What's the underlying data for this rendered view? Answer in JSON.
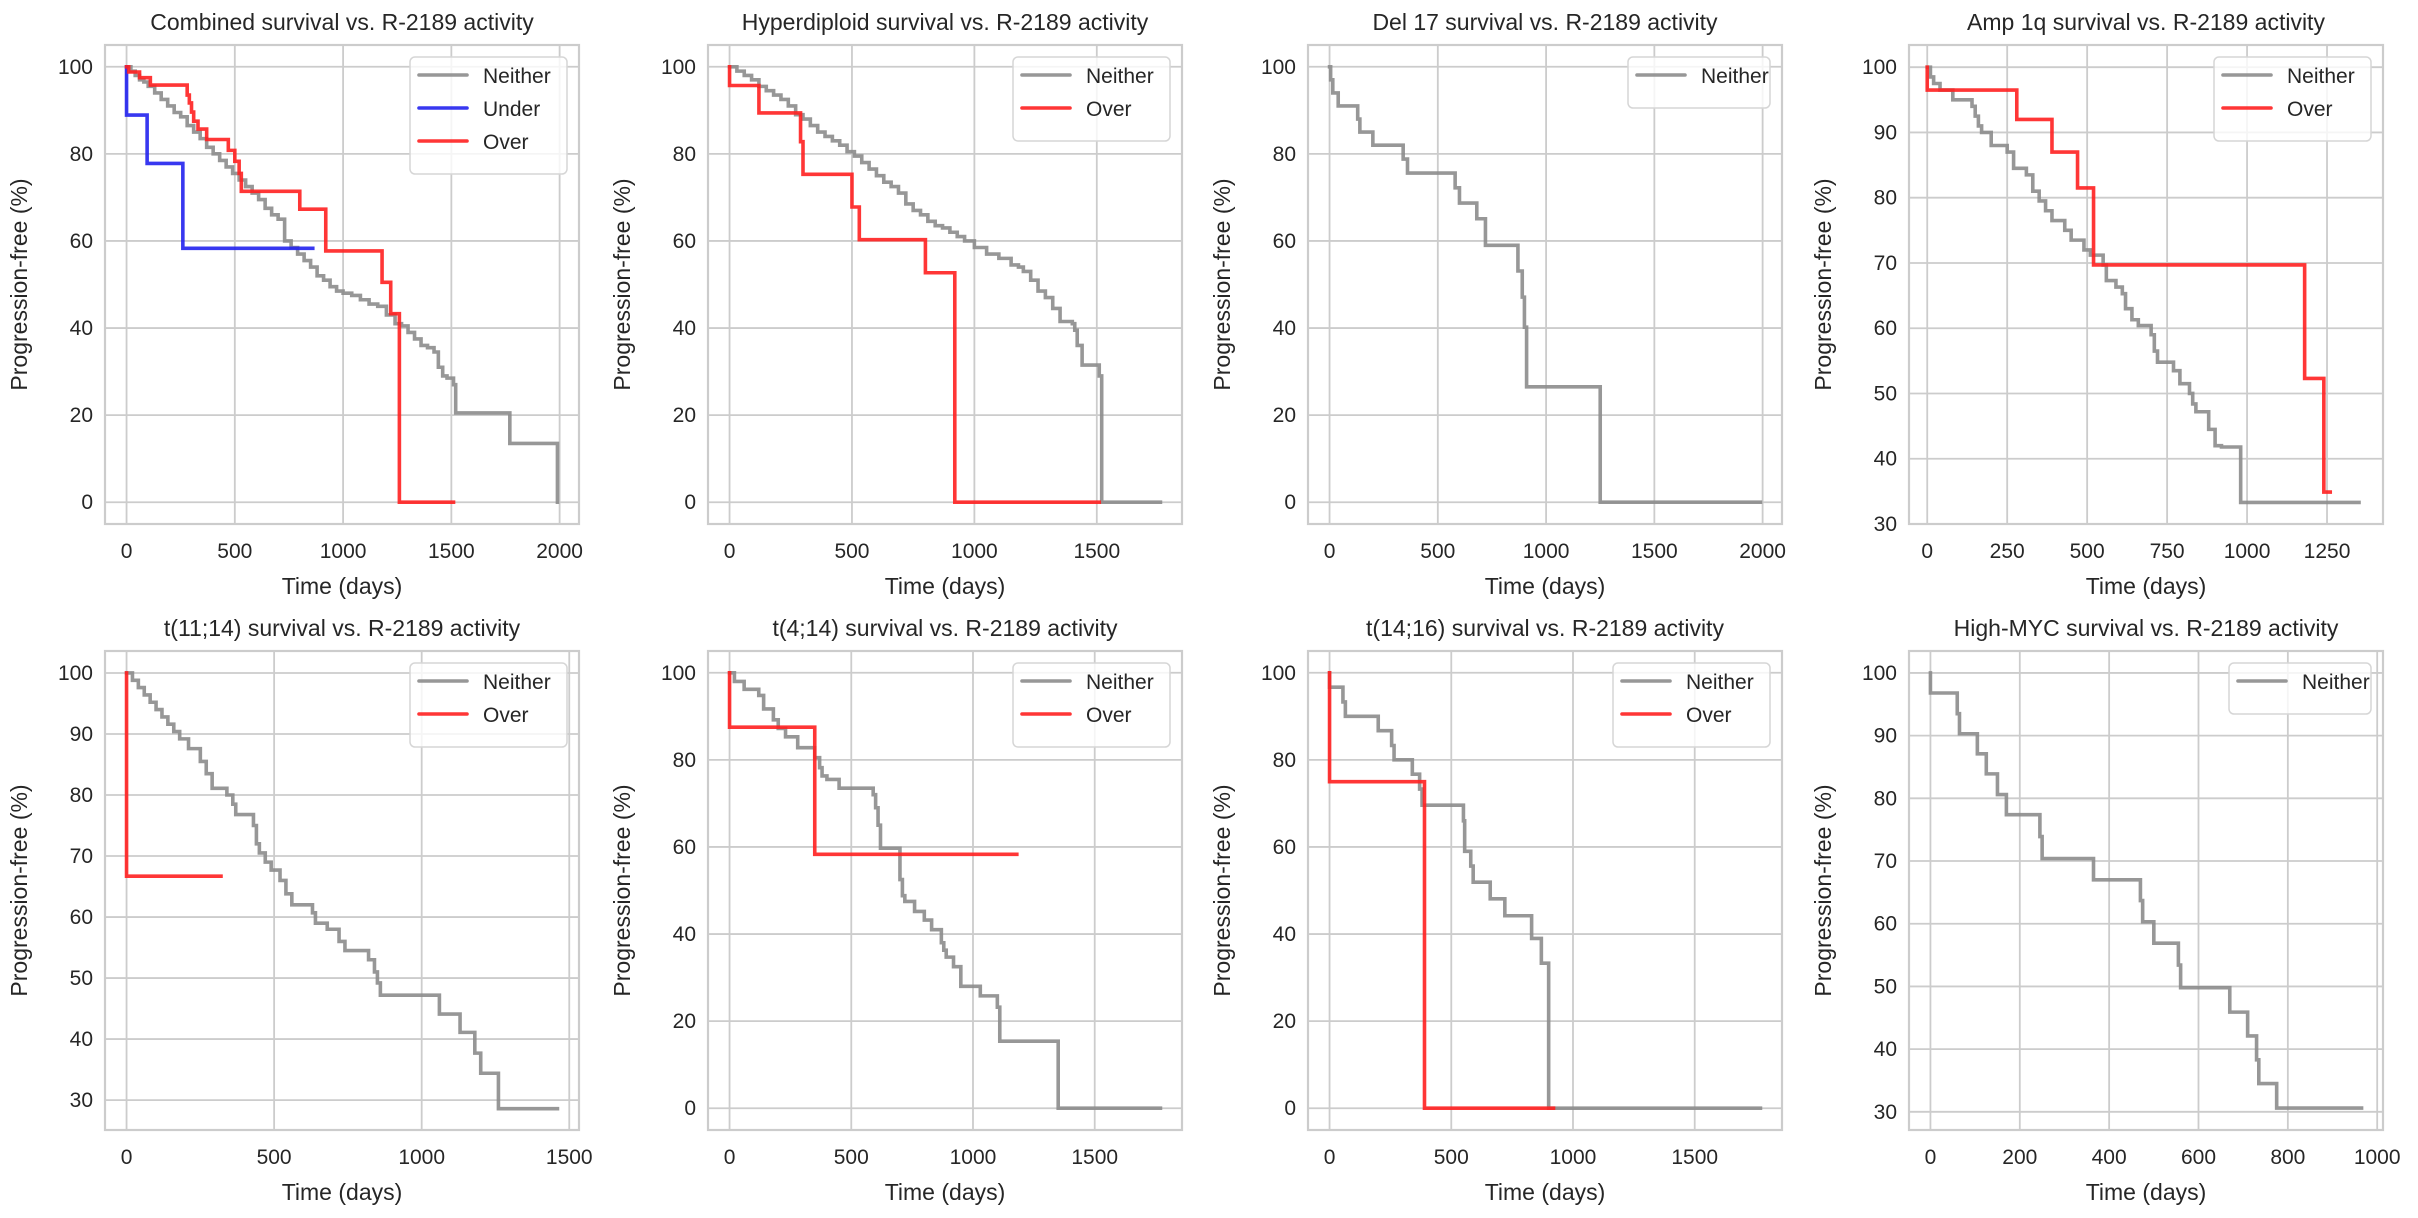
{
  "chart_data": [
    {
      "type": "line",
      "step": true,
      "title": "Combined survival vs. R-2189 activity",
      "xlabel": "Time (days)",
      "ylabel": "Progression-free (%)",
      "xlim": [
        -99.5,
        2089.5
      ],
      "ylim": [
        -5,
        105
      ],
      "xticks": [
        0,
        500,
        1000,
        1500,
        2000
      ],
      "yticks": [
        0,
        20,
        40,
        60,
        80,
        100
      ],
      "grid": true,
      "legend": "top-right",
      "series": [
        {
          "name": "Neither",
          "color": "#8c8c8c",
          "x": [
            0,
            20,
            40,
            60,
            80,
            100,
            130,
            160,
            190,
            220,
            250,
            280,
            310,
            340,
            370,
            400,
            430,
            460,
            490,
            520,
            550,
            580,
            610,
            640,
            670,
            700,
            730,
            760,
            790,
            820,
            850,
            880,
            910,
            940,
            970,
            1000,
            1040,
            1080,
            1120,
            1160,
            1200,
            1240,
            1270,
            1300,
            1330,
            1360,
            1390,
            1420,
            1440,
            1460,
            1480,
            1510,
            1520,
            1760,
            1770,
            1990
          ],
          "y": [
            100,
            99,
            98,
            97,
            96.5,
            95.5,
            94,
            92.5,
            91,
            89.5,
            88.5,
            86.5,
            85,
            83.5,
            81.5,
            80,
            78.5,
            77,
            75.5,
            74,
            72.5,
            71,
            69.5,
            67.5,
            66,
            65,
            60,
            58.5,
            57,
            55.5,
            54,
            52,
            51,
            49.5,
            48.5,
            48,
            47.5,
            46.5,
            45.5,
            45,
            43,
            41,
            40.5,
            39,
            37.5,
            36,
            35.5,
            34.5,
            31,
            29,
            28.5,
            27,
            20.5,
            20.5,
            13.5,
            0
          ]
        },
        {
          "name": "Under",
          "color": "#2222ee",
          "x": [
            0,
            0,
            95,
            260,
            860
          ],
          "y": [
            100,
            88.9,
            77.8,
            58.3,
            58.3
          ]
        },
        {
          "name": "Over",
          "color": "#ff2020",
          "x": [
            0,
            10,
            60,
            110,
            280,
            290,
            300,
            310,
            330,
            370,
            470,
            500,
            520,
            530,
            800,
            920,
            1180,
            1220,
            1260,
            1510
          ],
          "y": [
            100,
            98.8,
            97.5,
            95.8,
            93.5,
            91.7,
            89.6,
            87.5,
            85.7,
            83.3,
            80.8,
            78.3,
            75.5,
            71.4,
            67.3,
            57.7,
            50.5,
            43.3,
            0,
            0
          ]
        }
      ]
    },
    {
      "type": "line",
      "step": true,
      "title": "Hyperdiploid survival vs. R-2189 activity",
      "xlabel": "Time (days)",
      "ylabel": "Progression-free (%)",
      "xlim": [
        -88,
        1848
      ],
      "ylim": [
        -5,
        105
      ],
      "xticks": [
        0,
        500,
        1000,
        1500
      ],
      "yticks": [
        0,
        20,
        40,
        60,
        80,
        100
      ],
      "grid": true,
      "legend": "top-right",
      "series": [
        {
          "name": "Neither",
          "color": "#8c8c8c",
          "x": [
            0,
            30,
            60,
            90,
            120,
            150,
            180,
            210,
            240,
            270,
            300,
            330,
            360,
            390,
            420,
            450,
            480,
            510,
            540,
            570,
            600,
            630,
            660,
            690,
            720,
            750,
            780,
            810,
            840,
            870,
            900,
            930,
            960,
            1000,
            1050,
            1100,
            1150,
            1180,
            1200,
            1230,
            1260,
            1290,
            1320,
            1350,
            1400,
            1410,
            1420,
            1440,
            1510,
            1520,
            1760
          ],
          "y": [
            100,
            99,
            98,
            97,
            95.5,
            94.5,
            93.5,
            92.5,
            91,
            89,
            88,
            86.5,
            85,
            84,
            83,
            82,
            80.5,
            79.5,
            78,
            76.5,
            75,
            73.5,
            72.5,
            71,
            68.5,
            67,
            66,
            64.5,
            63.5,
            63,
            62,
            61,
            60,
            58.5,
            57,
            56,
            54.5,
            54,
            53,
            51,
            48.5,
            47,
            44.5,
            41.5,
            41,
            39.5,
            36,
            31.5,
            29,
            0,
            0
          ]
        },
        {
          "name": "Over",
          "color": "#ff2020",
          "x": [
            0,
            0,
            120,
            290,
            300,
            500,
            530,
            800,
            920,
            1510
          ],
          "y": [
            100,
            95.7,
            89.4,
            82.8,
            75.3,
            67.8,
            60.3,
            52.7,
            0,
            0
          ]
        }
      ]
    },
    {
      "type": "line",
      "step": true,
      "title": "Del 17 survival vs. R-2189 activity",
      "xlabel": "Time (days)",
      "ylabel": "Progression-free (%)",
      "xlim": [
        -99.5,
        2089.5
      ],
      "ylim": [
        -5,
        105
      ],
      "xticks": [
        0,
        500,
        1000,
        1500,
        2000
      ],
      "yticks": [
        0,
        20,
        40,
        60,
        80,
        100
      ],
      "grid": true,
      "legend": "top-right",
      "series": [
        {
          "name": "Neither",
          "color": "#8c8c8c",
          "x": [
            0,
            5,
            15,
            40,
            130,
            140,
            200,
            340,
            360,
            580,
            600,
            680,
            720,
            870,
            890,
            900,
            910,
            1250,
            1990
          ],
          "y": [
            100,
            97,
            94,
            91,
            88,
            85,
            82,
            78.8,
            75.6,
            72.2,
            68.7,
            65.1,
            59,
            53.1,
            47.1,
            40.2,
            26.5,
            0,
            0
          ]
        }
      ]
    },
    {
      "type": "line",
      "step": true,
      "title": "Amp 1q survival vs. R-2189 activity",
      "xlabel": "Time (days)",
      "ylabel": "Progression-free (%)",
      "xlim": [
        -57,
        1425
      ],
      "ylim": [
        30,
        103.4
      ],
      "xticks": [
        0,
        250,
        500,
        750,
        1000,
        1250
      ],
      "yticks": [
        30,
        40,
        50,
        60,
        70,
        80,
        90,
        100
      ],
      "grid": true,
      "legend": "top-right",
      "series": [
        {
          "name": "Neither",
          "color": "#8c8c8c",
          "x": [
            0,
            10,
            20,
            40,
            80,
            140,
            150,
            160,
            170,
            200,
            250,
            270,
            310,
            330,
            350,
            370,
            390,
            430,
            450,
            490,
            510,
            550,
            560,
            590,
            610,
            620,
            640,
            660,
            700,
            710,
            720,
            770,
            790,
            820,
            830,
            840,
            880,
            900,
            920,
            980,
            1350
          ],
          "y": [
            100,
            98.5,
            97.5,
            96.5,
            95,
            94,
            92.5,
            91,
            90,
            88,
            87,
            84.5,
            83.5,
            81,
            79.5,
            78,
            76.5,
            75,
            73.5,
            72,
            71.2,
            69.7,
            67.3,
            66.3,
            65.3,
            63,
            61.3,
            60.4,
            59,
            56.5,
            54.8,
            53.5,
            51.5,
            50,
            48.4,
            47.2,
            44.5,
            42,
            41.8,
            33.3,
            33.3
          ]
        },
        {
          "name": "Over",
          "color": "#ff2020",
          "x": [
            0,
            0,
            280,
            390,
            470,
            520,
            1180,
            1240,
            1260
          ],
          "y": [
            100,
            96.5,
            92,
            87,
            81.5,
            69.7,
            52.3,
            34.9,
            34.9
          ]
        }
      ]
    },
    {
      "type": "line",
      "step": true,
      "title": "t(11;14) survival vs. R-2189 activity",
      "xlabel": "Time (days)",
      "ylabel": "Progression-free (%)",
      "xlim": [
        -73,
        1533
      ],
      "ylim": [
        25.1,
        103.6
      ],
      "xticks": [
        0,
        500,
        1000,
        1500
      ],
      "yticks": [
        30,
        40,
        50,
        60,
        70,
        80,
        90,
        100
      ],
      "grid": true,
      "legend": "top-right",
      "series": [
        {
          "name": "Neither",
          "color": "#8c8c8c",
          "x": [
            0,
            20,
            40,
            60,
            80,
            100,
            120,
            140,
            160,
            180,
            210,
            250,
            270,
            290,
            340,
            360,
            370,
            430,
            440,
            450,
            470,
            490,
            520,
            540,
            560,
            630,
            640,
            680,
            720,
            740,
            820,
            840,
            850,
            860,
            880,
            1060,
            1130,
            1180,
            1200,
            1260,
            1460
          ],
          "y": [
            100,
            98.8,
            97.6,
            96.4,
            95.2,
            94,
            92.8,
            91.6,
            90.4,
            89.2,
            87.6,
            85.5,
            83.5,
            81.1,
            80,
            78.5,
            76.8,
            75,
            72,
            70.5,
            69,
            67.7,
            66,
            63.8,
            62,
            60.7,
            59,
            58,
            56,
            54.5,
            53,
            51,
            49.2,
            47.2,
            47.2,
            44.1,
            41.1,
            37.7,
            34.4,
            28.6,
            28.6
          ]
        },
        {
          "name": "Over",
          "color": "#ff2020",
          "x": [
            0,
            0,
            320
          ],
          "y": [
            100,
            66.7,
            66.7
          ]
        }
      ]
    },
    {
      "type": "line",
      "step": true,
      "title": "t(4;14) survival vs. R-2189 activity",
      "xlabel": "Time (days)",
      "ylabel": "Progression-free (%)",
      "xlim": [
        -88.5,
        1858.5
      ],
      "ylim": [
        -5,
        105
      ],
      "xticks": [
        0,
        500,
        1000,
        1500
      ],
      "yticks": [
        0,
        20,
        40,
        60,
        80,
        100
      ],
      "grid": true,
      "legend": "top-right",
      "series": [
        {
          "name": "Neither",
          "color": "#8c8c8c",
          "x": [
            0,
            20,
            60,
            120,
            140,
            180,
            200,
            230,
            280,
            350,
            370,
            380,
            400,
            450,
            590,
            600,
            610,
            620,
            700,
            710,
            720,
            760,
            800,
            830,
            870,
            880,
            890,
            920,
            950,
            1030,
            1100,
            1110,
            1350,
            1770
          ],
          "y": [
            100,
            98,
            96.2,
            94.8,
            91.7,
            89.2,
            87.2,
            85.3,
            82.8,
            80.5,
            78.2,
            76.3,
            75.5,
            73.5,
            72,
            69,
            65,
            59.7,
            52.5,
            48.8,
            47.5,
            45.2,
            43.2,
            41,
            38,
            36.3,
            34.7,
            32.5,
            28,
            25.8,
            23.2,
            15.4,
            0,
            0
          ]
        },
        {
          "name": "Over",
          "color": "#ff2020",
          "x": [
            0,
            0,
            350,
            1180
          ],
          "y": [
            100,
            87.5,
            58.3,
            58.3
          ]
        }
      ]
    },
    {
      "type": "line",
      "step": true,
      "title": "t(14;16) survival vs. R-2189 activity",
      "xlabel": "Time (days)",
      "ylabel": "Progression-free (%)",
      "xlim": [
        -88.5,
        1858.5
      ],
      "ylim": [
        -5,
        105
      ],
      "xticks": [
        0,
        500,
        1000,
        1500
      ],
      "yticks": [
        0,
        20,
        40,
        60,
        80,
        100
      ],
      "grid": true,
      "legend": "top-right",
      "series": [
        {
          "name": "Neither",
          "color": "#8c8c8c",
          "x": [
            0,
            0,
            55,
            65,
            200,
            255,
            265,
            340,
            370,
            380,
            550,
            555,
            580,
            590,
            660,
            720,
            830,
            870,
            900,
            1770
          ],
          "y": [
            100,
            96.7,
            93.3,
            90,
            86.7,
            83.3,
            80,
            76.7,
            73.3,
            69.6,
            66,
            59,
            55.6,
            51.9,
            48.1,
            44.2,
            39,
            33.3,
            0,
            0
          ]
        },
        {
          "name": "Over",
          "color": "#ff2020",
          "x": [
            0,
            0,
            390,
            920
          ],
          "y": [
            100,
            75,
            0,
            0
          ]
        }
      ]
    },
    {
      "type": "line",
      "step": true,
      "title": "High-MYC survival vs. R-2189 activity",
      "xlabel": "Time (days)",
      "ylabel": "Progression-free (%)",
      "xlim": [
        -48,
        1013
      ],
      "ylim": [
        27.1,
        103.5
      ],
      "xticks": [
        0,
        200,
        400,
        600,
        800,
        1000
      ],
      "yticks": [
        30,
        40,
        50,
        60,
        70,
        80,
        90,
        100
      ],
      "grid": true,
      "legend": "top-right",
      "series": [
        {
          "name": "Neither",
          "color": "#8c8c8c",
          "x": [
            0,
            0,
            60,
            65,
            105,
            125,
            150,
            170,
            245,
            250,
            365,
            470,
            475,
            500,
            555,
            560,
            670,
            710,
            730,
            735,
            775,
            965
          ],
          "y": [
            100,
            96.8,
            93.5,
            90.3,
            87.1,
            83.9,
            80.6,
            77.4,
            73.9,
            70.4,
            67,
            63.7,
            60.3,
            56.9,
            53.4,
            49.8,
            45.9,
            42.1,
            38.3,
            34.5,
            30.6,
            30.6
          ]
        }
      ]
    }
  ]
}
